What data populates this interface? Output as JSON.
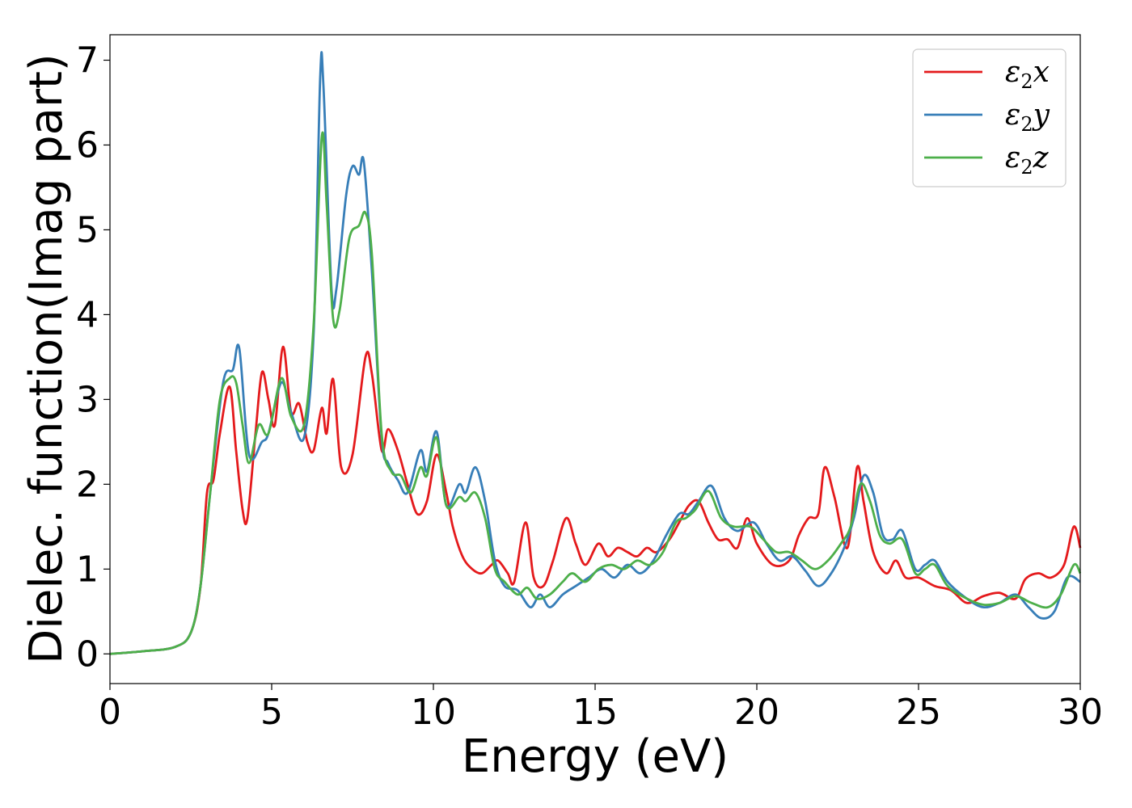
{
  "chart_data": {
    "type": "line",
    "xlabel": "Energy (eV)",
    "ylabel": "Dielec. function(Imag part)",
    "xlim": [
      0,
      30
    ],
    "ylim": [
      -0.35,
      7.3
    ],
    "xticks": [
      0,
      5,
      10,
      15,
      20,
      25,
      30
    ],
    "yticks": [
      0,
      1,
      2,
      3,
      4,
      5,
      6,
      7
    ],
    "grid": false,
    "legend_position": "top-right",
    "series": [
      {
        "name": "ε2x",
        "legend_base": "ε",
        "legend_sub": "2",
        "legend_suffix": "x",
        "color": "#e41a1c",
        "points": [
          [
            0,
            0
          ],
          [
            1,
            0.03
          ],
          [
            2,
            0.08
          ],
          [
            2.5,
            0.25
          ],
          [
            2.8,
            0.8
          ],
          [
            3.0,
            1.9
          ],
          [
            3.2,
            2.05
          ],
          [
            3.4,
            2.6
          ],
          [
            3.7,
            3.15
          ],
          [
            3.9,
            2.4
          ],
          [
            4.1,
            1.7
          ],
          [
            4.25,
            1.6
          ],
          [
            4.5,
            2.6
          ],
          [
            4.7,
            3.32
          ],
          [
            4.9,
            3.0
          ],
          [
            5.1,
            2.7
          ],
          [
            5.35,
            3.62
          ],
          [
            5.6,
            2.85
          ],
          [
            5.85,
            2.95
          ],
          [
            6.1,
            2.5
          ],
          [
            6.3,
            2.4
          ],
          [
            6.55,
            2.9
          ],
          [
            6.7,
            2.6
          ],
          [
            6.9,
            3.24
          ],
          [
            7.15,
            2.2
          ],
          [
            7.5,
            2.35
          ],
          [
            7.9,
            3.5
          ],
          [
            8.1,
            3.3
          ],
          [
            8.4,
            2.4
          ],
          [
            8.6,
            2.65
          ],
          [
            8.9,
            2.4
          ],
          [
            9.2,
            2.0
          ],
          [
            9.5,
            1.65
          ],
          [
            9.8,
            1.8
          ],
          [
            10.1,
            2.35
          ],
          [
            10.4,
            1.9
          ],
          [
            10.6,
            1.5
          ],
          [
            10.9,
            1.15
          ],
          [
            11.2,
            1.0
          ],
          [
            11.5,
            0.95
          ],
          [
            11.8,
            1.05
          ],
          [
            12.0,
            1.1
          ],
          [
            12.3,
            0.95
          ],
          [
            12.5,
            0.85
          ],
          [
            12.85,
            1.55
          ],
          [
            13.1,
            0.9
          ],
          [
            13.4,
            0.8
          ],
          [
            13.7,
            1.1
          ],
          [
            14.1,
            1.6
          ],
          [
            14.4,
            1.3
          ],
          [
            14.7,
            1.05
          ],
          [
            15.1,
            1.3
          ],
          [
            15.4,
            1.15
          ],
          [
            15.7,
            1.25
          ],
          [
            16.0,
            1.2
          ],
          [
            16.3,
            1.15
          ],
          [
            16.6,
            1.25
          ],
          [
            16.9,
            1.2
          ],
          [
            17.3,
            1.35
          ],
          [
            17.6,
            1.55
          ],
          [
            17.9,
            1.75
          ],
          [
            18.2,
            1.8
          ],
          [
            18.5,
            1.55
          ],
          [
            18.8,
            1.35
          ],
          [
            19.1,
            1.35
          ],
          [
            19.4,
            1.25
          ],
          [
            19.7,
            1.6
          ],
          [
            20.0,
            1.3
          ],
          [
            20.5,
            1.05
          ],
          [
            21.0,
            1.1
          ],
          [
            21.3,
            1.4
          ],
          [
            21.6,
            1.6
          ],
          [
            21.9,
            1.65
          ],
          [
            22.1,
            2.2
          ],
          [
            22.4,
            1.85
          ],
          [
            22.8,
            1.25
          ],
          [
            23.1,
            2.2
          ],
          [
            23.3,
            1.8
          ],
          [
            23.6,
            1.2
          ],
          [
            24.0,
            0.95
          ],
          [
            24.3,
            1.1
          ],
          [
            24.6,
            0.9
          ],
          [
            25.0,
            0.9
          ],
          [
            25.5,
            0.8
          ],
          [
            26.0,
            0.75
          ],
          [
            26.5,
            0.6
          ],
          [
            27.0,
            0.68
          ],
          [
            27.5,
            0.72
          ],
          [
            28.0,
            0.65
          ],
          [
            28.3,
            0.88
          ],
          [
            28.7,
            0.95
          ],
          [
            29.1,
            0.9
          ],
          [
            29.5,
            1.05
          ],
          [
            29.8,
            1.5
          ],
          [
            30.0,
            1.25
          ]
        ]
      },
      {
        "name": "ε2y",
        "legend_base": "ε",
        "legend_sub": "2",
        "legend_suffix": "y",
        "color": "#377eb8",
        "points": [
          [
            0,
            0
          ],
          [
            1,
            0.03
          ],
          [
            2,
            0.08
          ],
          [
            2.5,
            0.25
          ],
          [
            2.8,
            0.8
          ],
          [
            3.1,
            1.9
          ],
          [
            3.5,
            3.2
          ],
          [
            3.8,
            3.35
          ],
          [
            4.0,
            3.6
          ],
          [
            4.3,
            2.35
          ],
          [
            4.7,
            2.5
          ],
          [
            4.9,
            2.6
          ],
          [
            5.3,
            3.2
          ],
          [
            5.6,
            2.85
          ],
          [
            6.0,
            2.55
          ],
          [
            6.3,
            3.8
          ],
          [
            6.5,
            6.8
          ],
          [
            6.6,
            6.7
          ],
          [
            6.85,
            4.3
          ],
          [
            7.0,
            4.3
          ],
          [
            7.3,
            5.4
          ],
          [
            7.5,
            5.75
          ],
          [
            7.7,
            5.65
          ],
          [
            7.85,
            5.8
          ],
          [
            8.1,
            4.5
          ],
          [
            8.4,
            2.55
          ],
          [
            8.6,
            2.25
          ],
          [
            8.9,
            2.05
          ],
          [
            9.2,
            1.9
          ],
          [
            9.6,
            2.4
          ],
          [
            9.8,
            2.15
          ],
          [
            10.1,
            2.62
          ],
          [
            10.4,
            1.75
          ],
          [
            10.8,
            2.0
          ],
          [
            11.0,
            1.9
          ],
          [
            11.3,
            2.2
          ],
          [
            11.6,
            1.8
          ],
          [
            11.9,
            1.1
          ],
          [
            12.2,
            0.8
          ],
          [
            12.6,
            0.75
          ],
          [
            13.0,
            0.55
          ],
          [
            13.3,
            0.7
          ],
          [
            13.6,
            0.55
          ],
          [
            14.0,
            0.7
          ],
          [
            14.4,
            0.8
          ],
          [
            14.8,
            0.9
          ],
          [
            15.2,
            1.0
          ],
          [
            15.6,
            0.9
          ],
          [
            16.0,
            1.05
          ],
          [
            16.4,
            0.95
          ],
          [
            16.8,
            1.1
          ],
          [
            17.2,
            1.4
          ],
          [
            17.6,
            1.65
          ],
          [
            17.9,
            1.65
          ],
          [
            18.2,
            1.8
          ],
          [
            18.6,
            1.98
          ],
          [
            19.0,
            1.6
          ],
          [
            19.4,
            1.45
          ],
          [
            19.9,
            1.55
          ],
          [
            20.3,
            1.3
          ],
          [
            20.7,
            1.1
          ],
          [
            21.1,
            1.15
          ],
          [
            21.5,
            0.98
          ],
          [
            21.9,
            0.8
          ],
          [
            22.3,
            0.95
          ],
          [
            22.7,
            1.25
          ],
          [
            23.0,
            1.6
          ],
          [
            23.3,
            2.1
          ],
          [
            23.6,
            1.9
          ],
          [
            23.9,
            1.4
          ],
          [
            24.2,
            1.35
          ],
          [
            24.5,
            1.45
          ],
          [
            24.9,
            1.0
          ],
          [
            25.2,
            1.05
          ],
          [
            25.5,
            1.1
          ],
          [
            25.9,
            0.85
          ],
          [
            26.5,
            0.65
          ],
          [
            27.0,
            0.55
          ],
          [
            27.5,
            0.6
          ],
          [
            28.0,
            0.7
          ],
          [
            28.4,
            0.55
          ],
          [
            28.8,
            0.42
          ],
          [
            29.2,
            0.5
          ],
          [
            29.6,
            0.9
          ],
          [
            30.0,
            0.85
          ]
        ]
      },
      {
        "name": "ε2z",
        "legend_base": "ε",
        "legend_sub": "2",
        "legend_suffix": "z",
        "color": "#4daf4a",
        "points": [
          [
            0,
            0
          ],
          [
            1,
            0.03
          ],
          [
            2,
            0.08
          ],
          [
            2.5,
            0.25
          ],
          [
            2.8,
            0.8
          ],
          [
            3.1,
            1.9
          ],
          [
            3.4,
            3.0
          ],
          [
            3.7,
            3.25
          ],
          [
            3.9,
            3.2
          ],
          [
            4.1,
            2.7
          ],
          [
            4.3,
            2.25
          ],
          [
            4.6,
            2.7
          ],
          [
            4.9,
            2.6
          ],
          [
            5.3,
            3.25
          ],
          [
            5.6,
            2.8
          ],
          [
            6.0,
            2.7
          ],
          [
            6.3,
            3.9
          ],
          [
            6.55,
            6.1
          ],
          [
            6.7,
            5.3
          ],
          [
            6.9,
            3.95
          ],
          [
            7.1,
            4.05
          ],
          [
            7.4,
            4.9
          ],
          [
            7.7,
            5.05
          ],
          [
            7.9,
            5.2
          ],
          [
            8.1,
            4.7
          ],
          [
            8.4,
            2.6
          ],
          [
            8.7,
            2.15
          ],
          [
            9.0,
            2.1
          ],
          [
            9.3,
            1.9
          ],
          [
            9.6,
            2.2
          ],
          [
            9.8,
            2.1
          ],
          [
            10.1,
            2.55
          ],
          [
            10.4,
            1.75
          ],
          [
            10.8,
            1.85
          ],
          [
            11.0,
            1.8
          ],
          [
            11.3,
            1.9
          ],
          [
            11.6,
            1.6
          ],
          [
            11.9,
            1.0
          ],
          [
            12.2,
            0.85
          ],
          [
            12.6,
            0.7
          ],
          [
            12.9,
            0.78
          ],
          [
            13.2,
            0.65
          ],
          [
            13.6,
            0.7
          ],
          [
            14.0,
            0.85
          ],
          [
            14.3,
            0.95
          ],
          [
            14.7,
            0.85
          ],
          [
            15.1,
            1.0
          ],
          [
            15.5,
            1.05
          ],
          [
            15.9,
            1.0
          ],
          [
            16.3,
            1.1
          ],
          [
            16.7,
            1.05
          ],
          [
            17.1,
            1.2
          ],
          [
            17.5,
            1.55
          ],
          [
            17.8,
            1.6
          ],
          [
            18.1,
            1.7
          ],
          [
            18.5,
            1.92
          ],
          [
            18.9,
            1.6
          ],
          [
            19.3,
            1.5
          ],
          [
            19.8,
            1.5
          ],
          [
            20.2,
            1.35
          ],
          [
            20.6,
            1.2
          ],
          [
            21.0,
            1.2
          ],
          [
            21.4,
            1.1
          ],
          [
            21.8,
            1.0
          ],
          [
            22.2,
            1.1
          ],
          [
            22.6,
            1.3
          ],
          [
            22.9,
            1.5
          ],
          [
            23.2,
            2.0
          ],
          [
            23.5,
            1.8
          ],
          [
            23.8,
            1.4
          ],
          [
            24.1,
            1.3
          ],
          [
            24.5,
            1.35
          ],
          [
            24.9,
            0.95
          ],
          [
            25.2,
            1.0
          ],
          [
            25.5,
            1.05
          ],
          [
            25.9,
            0.8
          ],
          [
            26.5,
            0.65
          ],
          [
            27.0,
            0.58
          ],
          [
            27.5,
            0.6
          ],
          [
            28.0,
            0.68
          ],
          [
            28.5,
            0.6
          ],
          [
            29.0,
            0.55
          ],
          [
            29.4,
            0.7
          ],
          [
            29.8,
            1.05
          ],
          [
            30.0,
            0.95
          ]
        ]
      }
    ]
  }
}
